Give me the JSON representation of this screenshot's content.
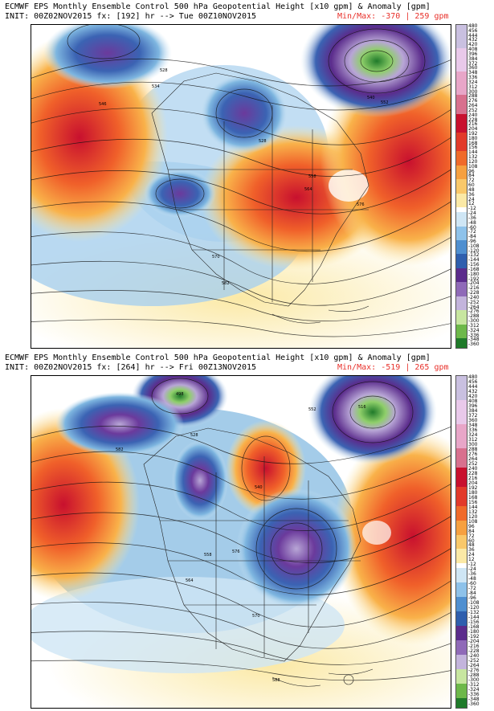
{
  "panels": [
    {
      "title": "ECMWF EPS Monthly Ensemble Control 500 hPa Geopotential Height [x10 gpm] & Anomaly [gpm]",
      "init": "INIT: 00Z02NOV2015 fx: [192] hr --> Tue 00Z10NOV2015",
      "minmax_label": "Min/Max:",
      "min": "-370",
      "max": "259",
      "unit": "gpm",
      "contour_labels": [
        "528",
        "534",
        "546",
        "552",
        "528",
        "558",
        "570",
        "582",
        "564",
        "576",
        "540"
      ]
    },
    {
      "title": "ECMWF EPS Monthly Ensemble Control 500 hPa Geopotential Height [x10 gpm] & Anomaly [gpm]",
      "init": "INIT: 00Z02NOV2015 fx: [264] hr --> Fri 00Z13NOV2015",
      "minmax_label": "Min/Max:",
      "min": "-519",
      "max": "265",
      "unit": "gpm",
      "contour_labels": [
        "498",
        "516",
        "552",
        "582",
        "558",
        "564",
        "576",
        "588",
        "528",
        "540",
        "570"
      ]
    }
  ],
  "colorbar": {
    "ticks": [
      "480",
      "456",
      "444",
      "432",
      "420",
      "408",
      "396",
      "384",
      "372",
      "360",
      "348",
      "336",
      "324",
      "312",
      "300",
      "288",
      "276",
      "264",
      "252",
      "240",
      "228",
      "216",
      "204",
      "192",
      "180",
      "168",
      "156",
      "144",
      "132",
      "120",
      "108",
      "96",
      "84",
      "72",
      "60",
      "48",
      "36",
      "24",
      "12",
      "-12",
      "-24",
      "-36",
      "-48",
      "-60",
      "-72",
      "-84",
      "-96",
      "-108",
      "-120",
      "-132",
      "-144",
      "-156",
      "-168",
      "-180",
      "-192",
      "-204",
      "-216",
      "-228",
      "-240",
      "-252",
      "-264",
      "-276",
      "-288",
      "-300",
      "-312",
      "-324",
      "-336",
      "-348",
      "-360"
    ]
  },
  "colors": {
    "title_text": "#000000",
    "minmax_text": "#e8302a",
    "positive_strong": "#c8102e",
    "positive_weak": "#fbe9a6",
    "negative_weak": "#cfe6f5",
    "negative_strong": "#5b2c8c",
    "extreme_negative": "#1f7a2a"
  }
}
